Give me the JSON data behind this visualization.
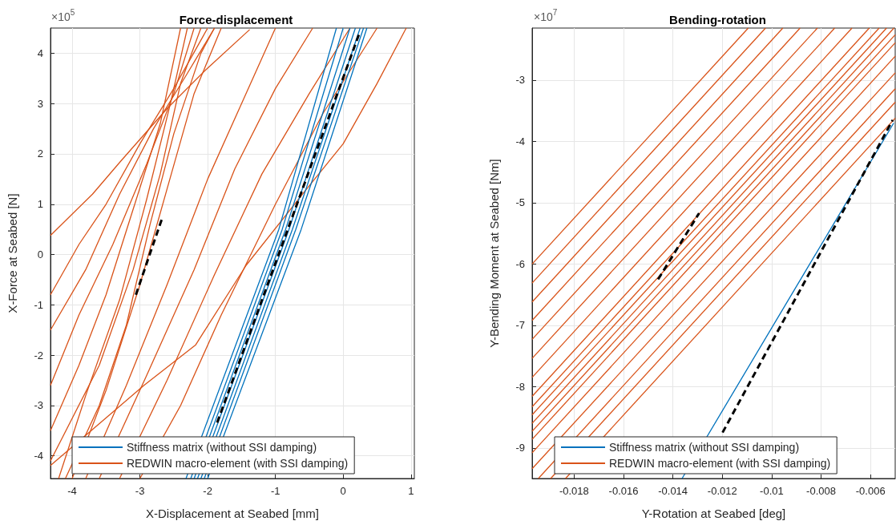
{
  "chart_data": [
    {
      "type": "line",
      "title": "Force-displacement",
      "xlabel": "X-Displacement at Seabed [mm]",
      "ylabel": "X-Force at Seabed [N]",
      "annotations": [
        "×10$^{5}$"
      ],
      "xlim": [
        -4.32,
        1.05
      ],
      "xticks": [
        -4,
        -3,
        -2,
        -1,
        0,
        1
      ],
      "ylim": [
        -4.45,
        4.5
      ],
      "yticks": [
        -4,
        -3,
        -2,
        -1,
        0,
        1,
        2,
        3,
        4
      ],
      "grid": true,
      "legend": "bottom",
      "marker": "none",
      "line_style": "solid",
      "series": [
        {
          "name": "REDWIN macro-element (with SSI damping)",
          "color": "#d95319",
          "x": [
            -4.32,
            -3.7,
            -3.28,
            -2.6,
            -2.02,
            -1.38
          ],
          "values": [
            0.38,
            1.2,
            1.86,
            2.9,
            3.68,
            4.47
          ]
        },
        {
          "color": "#d95319",
          "x": [
            -4.32,
            -3.8,
            -3.3,
            -2.8,
            -2.3,
            -1.9
          ],
          "values": [
            -1.5,
            -0.3,
            1.2,
            2.5,
            3.6,
            4.5
          ]
        },
        {
          "color": "#d95319",
          "x": [
            -4.32,
            -3.9,
            -3.4,
            -2.9,
            -2.5,
            -2.2
          ],
          "values": [
            -2.6,
            -1.2,
            0.2,
            1.8,
            3.2,
            4.5
          ]
        },
        {
          "color": "#d95319",
          "x": [
            -4.32,
            -3.9,
            -3.5,
            -3.1,
            -2.7,
            -2.4
          ],
          "values": [
            -3.5,
            -2.2,
            -0.8,
            0.9,
            2.6,
            4.5
          ]
        },
        {
          "color": "#d95319",
          "x": [
            -4.2,
            -3.8,
            -3.3,
            -2.9,
            -2.55,
            -2.3
          ],
          "values": [
            -4.45,
            -2.8,
            -0.9,
            1.1,
            3.0,
            4.5
          ]
        },
        {
          "color": "#d95319",
          "x": [
            -4.32,
            -3.6,
            -3.1,
            -2.7,
            -2.4,
            -2.1
          ],
          "values": [
            -4.1,
            -2.2,
            -0.3,
            1.6,
            3.4,
            4.5
          ]
        },
        {
          "color": "#d95319",
          "x": [
            -4.0,
            -3.5,
            -3.0,
            -2.6,
            -2.2,
            -1.8
          ],
          "values": [
            -4.45,
            -2.7,
            -0.6,
            1.3,
            3.2,
            4.5
          ]
        },
        {
          "color": "#d95319",
          "x": [
            -4.1,
            -3.6,
            -3.2,
            -2.85,
            -2.5,
            -2.1,
            -1.9
          ],
          "values": [
            -4.45,
            -3.0,
            -1.4,
            0.6,
            2.4,
            4.0,
            4.5
          ]
        },
        {
          "color": "#d95319",
          "x": [
            -3.8,
            -3.2,
            -2.6,
            -2.0,
            -1.5,
            -1.0
          ],
          "values": [
            -4.45,
            -2.6,
            -0.6,
            1.5,
            3.0,
            4.5
          ]
        },
        {
          "color": "#d95319",
          "x": [
            -3.6,
            -2.9,
            -2.2,
            -1.6,
            -1.0,
            -0.45
          ],
          "values": [
            -4.45,
            -2.4,
            -0.3,
            1.7,
            3.3,
            4.5
          ]
        },
        {
          "color": "#d95319",
          "x": [
            -3.3,
            -2.6,
            -1.9,
            -1.2,
            -0.5,
            0.1
          ],
          "values": [
            -4.45,
            -2.5,
            -0.4,
            1.6,
            3.2,
            4.5
          ]
        },
        {
          "color": "#d95319",
          "x": [
            -3.0,
            -2.4,
            -1.8,
            -1.0,
            -0.3,
            0.5
          ],
          "values": [
            -4.45,
            -3.0,
            -1.2,
            1.0,
            2.8,
            4.5
          ]
        },
        {
          "color": "#d95319",
          "x": [
            -4.32,
            -2.94,
            -2.18,
            -1.43,
            -0.6,
            0.0,
            0.5,
            0.93
          ],
          "values": [
            -4.19,
            -2.6,
            -1.8,
            -0.21,
            1.2,
            2.2,
            3.4,
            4.5
          ]
        },
        {
          "color": "#d95319",
          "x": [
            -4.32,
            -3.9,
            -3.5,
            -3.0,
            -2.5,
            -2.0
          ],
          "values": [
            -0.8,
            0.2,
            1.0,
            2.2,
            3.3,
            4.5
          ]
        },
        {
          "name": "Stiffness matrix (without SSI damping)",
          "color": "#0072bd",
          "x": [
            -2.32,
            -0.95,
            -0.1
          ],
          "values": [
            -4.45,
            0.5,
            4.5
          ]
        },
        {
          "color": "#0072bd",
          "x": [
            -2.25,
            -0.9,
            0.0
          ],
          "values": [
            -4.45,
            0.5,
            4.5
          ]
        },
        {
          "color": "#0072bd",
          "x": [
            -2.2,
            -0.85,
            0.1
          ],
          "values": [
            -4.45,
            0.5,
            4.5
          ]
        },
        {
          "color": "#0072bd",
          "x": [
            -2.15,
            -0.8,
            0.18
          ],
          "values": [
            -4.45,
            0.5,
            4.5
          ]
        },
        {
          "color": "#0072bd",
          "x": [
            -2.1,
            -0.75,
            0.25
          ],
          "values": [
            -4.45,
            0.5,
            4.5
          ]
        },
        {
          "color": "#0072bd",
          "x": [
            -2.05,
            -0.7,
            0.3
          ],
          "values": [
            -4.45,
            0.5,
            4.5
          ]
        },
        {
          "color": "#0072bd",
          "x": [
            -2.0,
            -0.62,
            0.35
          ],
          "values": [
            -4.45,
            0.5,
            4.5
          ]
        },
        {
          "color": "#000000",
          "line_style": "dashed",
          "x": [
            -3.06,
            -2.67
          ],
          "values": [
            -0.8,
            0.73
          ]
        },
        {
          "color": "#000000",
          "line_style": "dashed",
          "x": [
            -1.86,
            0.24
          ],
          "values": [
            -3.34,
            4.4
          ]
        }
      ]
    },
    {
      "type": "line",
      "title": "Bending-rotation",
      "xlabel": "Y-Rotation at Seabed [deg]",
      "ylabel": "Y-Bending Moment at Seabed [Nm]",
      "annotations": [
        "×10$^{7}$"
      ],
      "xlim": [
        -0.0197,
        -0.005
      ],
      "xticks": [
        -0.018,
        -0.016,
        -0.014,
        -0.012,
        -0.01,
        -0.008,
        -0.006
      ],
      "ylim": [
        -9.5,
        -2.15
      ],
      "yticks": [
        -9,
        -8,
        -7,
        -6,
        -5,
        -4,
        -3
      ],
      "grid": true,
      "legend": "bottom",
      "marker": "none",
      "line_style": "solid",
      "series": [
        {
          "name": "REDWIN macro-element (with SSI damping)",
          "color": "#d95319",
          "x": [
            -0.0197,
            -0.01095
          ],
          "values": [
            -6.0,
            -2.15
          ]
        },
        {
          "color": "#d95319",
          "x": [
            -0.0197,
            -0.01025
          ],
          "values": [
            -6.31,
            -2.15
          ]
        },
        {
          "color": "#d95319",
          "x": [
            -0.0197,
            -0.00955
          ],
          "values": [
            -6.62,
            -2.15
          ]
        },
        {
          "color": "#d95319",
          "x": [
            -0.0197,
            -0.00885
          ],
          "values": [
            -6.92,
            -2.15
          ]
        },
        {
          "color": "#d95319",
          "x": [
            -0.0197,
            -0.00815
          ],
          "values": [
            -7.23,
            -2.15
          ]
        },
        {
          "color": "#d95319",
          "x": [
            -0.0197,
            -0.00745
          ],
          "values": [
            -7.54,
            -2.15
          ]
        },
        {
          "color": "#d95319",
          "x": [
            -0.0197,
            -0.00675
          ],
          "values": [
            -7.85,
            -2.15
          ]
        },
        {
          "color": "#d95319",
          "x": [
            -0.0197,
            -0.00605
          ],
          "values": [
            -8.16,
            -2.15
          ]
        },
        {
          "color": "#d95319",
          "x": [
            -0.0197,
            -0.00565
          ],
          "values": [
            -8.33,
            -2.15
          ]
        },
        {
          "color": "#d95319",
          "x": [
            -0.0197,
            -0.00535
          ],
          "values": [
            -8.46,
            -2.15
          ]
        },
        {
          "color": "#d95319",
          "x": [
            -0.0197,
            -0.00505
          ],
          "values": [
            -8.6,
            -2.15
          ]
        },
        {
          "color": "#d95319",
          "x": [
            -0.0197,
            -0.005
          ],
          "values": [
            -8.73,
            -2.26
          ]
        },
        {
          "color": "#d95319",
          "x": [
            -0.0197,
            -0.005
          ],
          "values": [
            -8.86,
            -2.39
          ]
        },
        {
          "color": "#d95319",
          "x": [
            -0.0197,
            -0.005
          ],
          "values": [
            -9.08,
            -2.61
          ]
        },
        {
          "color": "#d95319",
          "x": [
            -0.0197,
            -0.005
          ],
          "values": [
            -9.34,
            -2.88
          ]
        },
        {
          "color": "#d95319",
          "x": [
            -0.01945,
            -0.005
          ],
          "values": [
            -9.5,
            -3.14
          ]
        },
        {
          "color": "#d95319",
          "x": [
            -0.01895,
            -0.005
          ],
          "values": [
            -9.5,
            -3.36
          ]
        },
        {
          "color": "#d95319",
          "x": [
            -0.01835,
            -0.005
          ],
          "values": [
            -9.5,
            -3.62
          ]
        },
        {
          "name": "Stiffness matrix (without SSI damping)",
          "color": "#0072bd",
          "x": [
            -0.01363,
            -0.00846,
            -0.00506
          ],
          "values": [
            -9.5,
            -6.0,
            -3.7
          ]
        },
        {
          "color": "#000000",
          "line_style": "dashed",
          "x": [
            -0.0146,
            -0.01294
          ],
          "values": [
            -6.25,
            -5.17
          ]
        },
        {
          "color": "#000000",
          "line_style": "dashed",
          "x": [
            -0.01199,
            -0.0051
          ],
          "values": [
            -8.75,
            -3.65
          ]
        }
      ]
    }
  ]
}
